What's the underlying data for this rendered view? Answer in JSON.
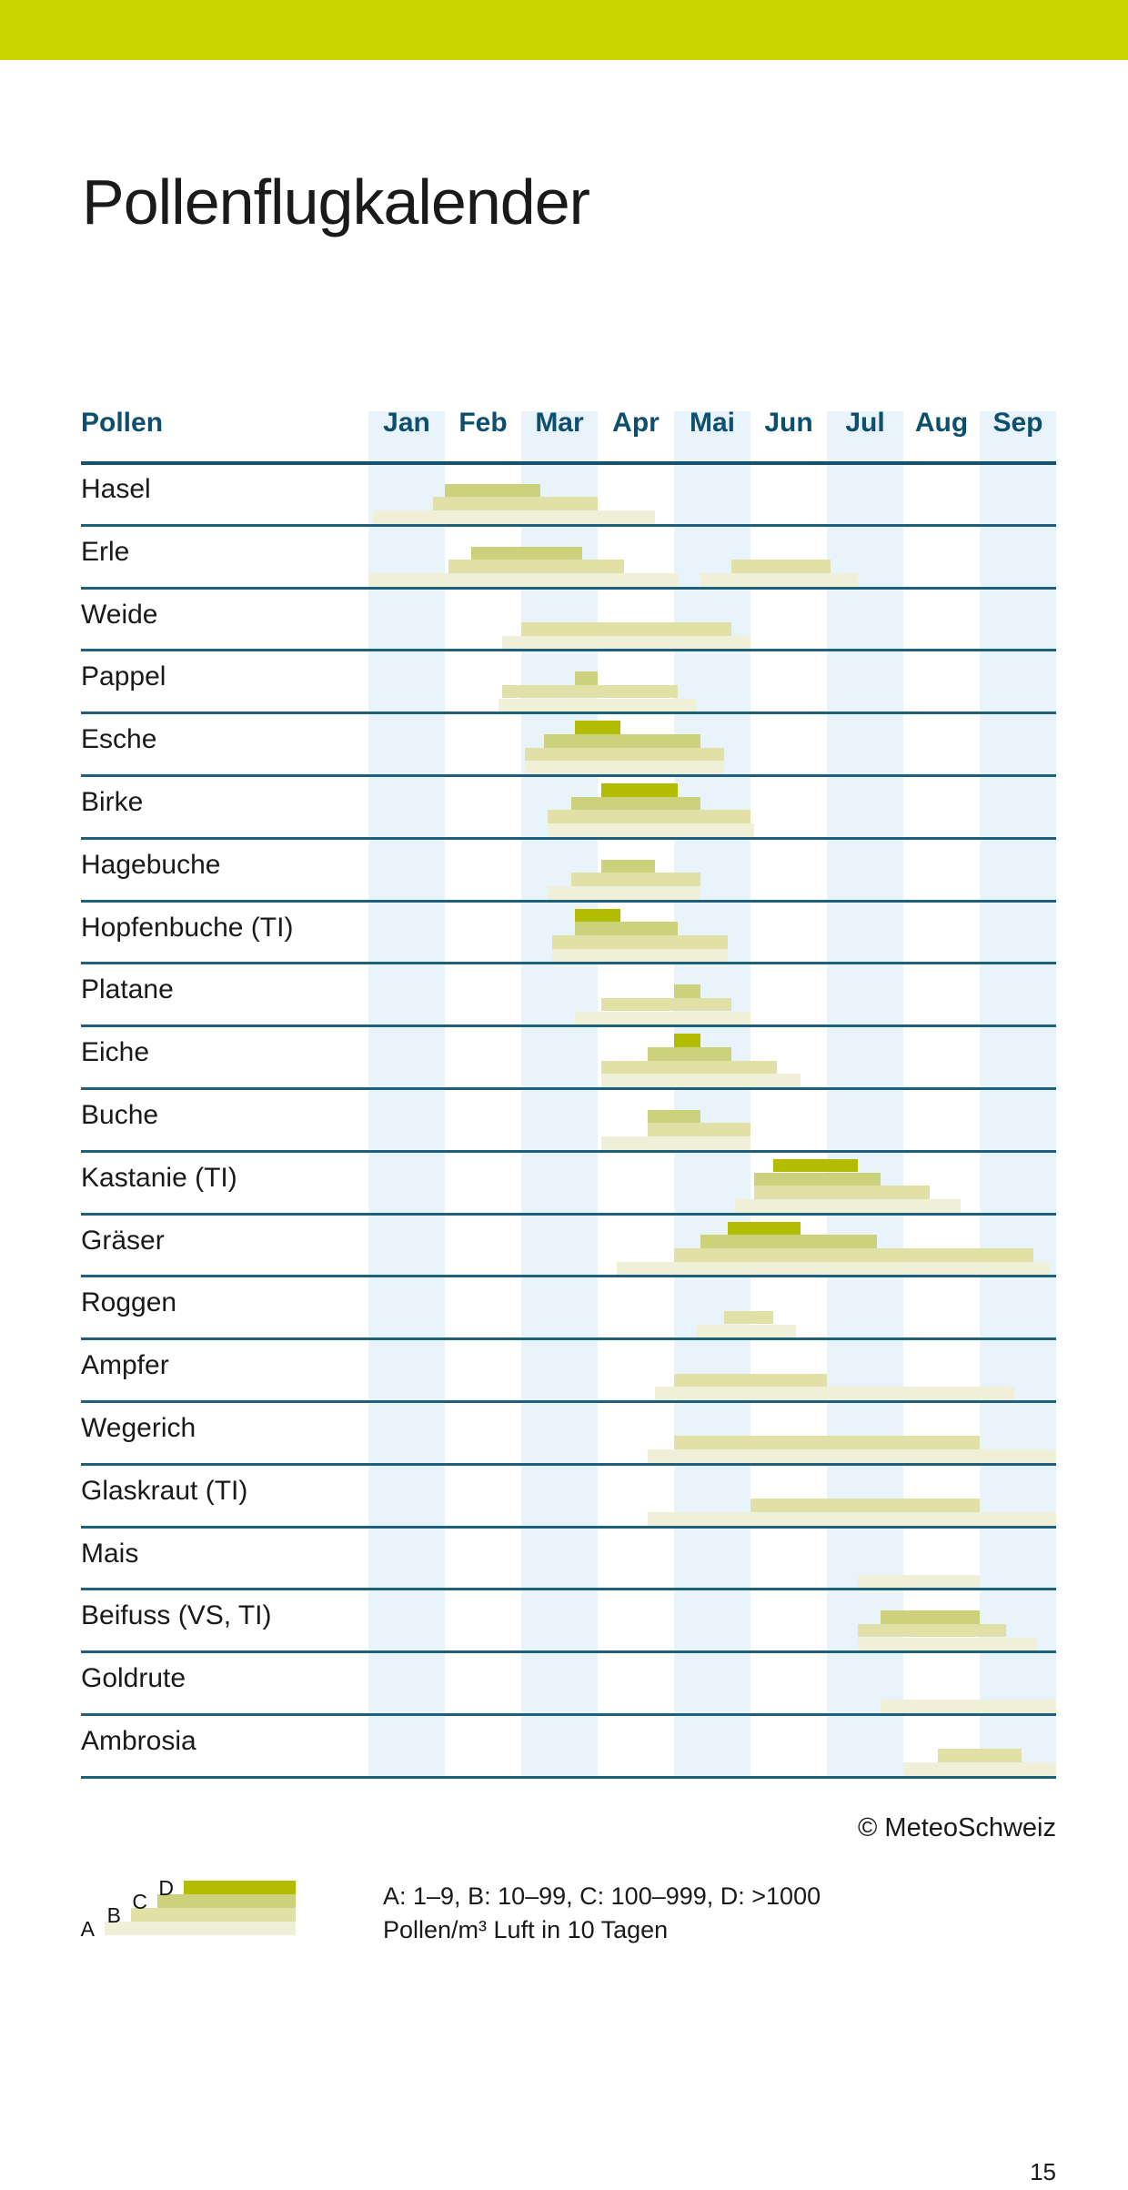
{
  "title": "Pollenflugkalender",
  "copyright": "© MeteoSchweiz",
  "page_number": "15",
  "colors": {
    "accent": "#cbd400",
    "stripe": "#e8f3fb",
    "divider": "#1e5f7c",
    "header_divider": "#14536f",
    "header_text": "#0d4f6e",
    "label_text": "#1a1a1a",
    "level_A": "#f0f0d8",
    "level_B": "#e1e1a7",
    "level_C": "#ccd17b",
    "level_D": "#b2bc00"
  },
  "chart_data": {
    "type": "timeline-bars",
    "title": "Pollenflugkalender",
    "column_header": "Pollen",
    "months": [
      "Jan",
      "Feb",
      "Mar",
      "Apr",
      "Mai",
      "Jun",
      "Jul",
      "Aug",
      "Sep"
    ],
    "striped_months": [
      "Jan",
      "Mar",
      "Mai",
      "Jul",
      "Sep"
    ],
    "axis": {
      "min": 0,
      "max": 9,
      "unit": "month",
      "note": "start/end given in months from Jan 1"
    },
    "levels": [
      "A",
      "B",
      "C",
      "D"
    ],
    "rows": [
      {
        "label": "Hasel",
        "bars": [
          {
            "level": "C",
            "start": 1.0,
            "end": 2.25
          },
          {
            "level": "B",
            "start": 0.85,
            "end": 3.0
          },
          {
            "level": "A",
            "start": 0.05,
            "end": 3.75
          }
        ]
      },
      {
        "label": "Erle",
        "bars": [
          {
            "level": "C",
            "start": 1.35,
            "end": 2.8
          },
          {
            "level": "B",
            "start": 1.05,
            "end": 3.35
          },
          {
            "level": "A",
            "start": 0.0,
            "end": 4.05
          },
          {
            "level": "B",
            "start": 4.75,
            "end": 6.05
          },
          {
            "level": "A",
            "start": 4.35,
            "end": 6.4
          }
        ]
      },
      {
        "label": "Weide",
        "bars": [
          {
            "level": "B",
            "start": 2.0,
            "end": 4.75
          },
          {
            "level": "A",
            "start": 1.75,
            "end": 5.0
          }
        ]
      },
      {
        "label": "Pappel",
        "bars": [
          {
            "level": "C",
            "start": 2.7,
            "end": 3.0
          },
          {
            "level": "B",
            "start": 1.75,
            "end": 4.05
          },
          {
            "level": "A",
            "start": 1.7,
            "end": 4.3
          }
        ]
      },
      {
        "label": "Esche",
        "bars": [
          {
            "level": "D",
            "start": 2.7,
            "end": 3.3
          },
          {
            "level": "C",
            "start": 2.3,
            "end": 4.35
          },
          {
            "level": "B",
            "start": 2.05,
            "end": 4.65
          },
          {
            "level": "A",
            "start": 2.05,
            "end": 4.65
          }
        ]
      },
      {
        "label": "Birke",
        "bars": [
          {
            "level": "D",
            "start": 3.05,
            "end": 4.05
          },
          {
            "level": "C",
            "start": 2.65,
            "end": 4.35
          },
          {
            "level": "B",
            "start": 2.35,
            "end": 5.0
          },
          {
            "level": "A",
            "start": 2.35,
            "end": 5.05
          }
        ]
      },
      {
        "label": "Hagebuche",
        "bars": [
          {
            "level": "C",
            "start": 3.05,
            "end": 3.75
          },
          {
            "level": "B",
            "start": 2.65,
            "end": 4.35
          },
          {
            "level": "A",
            "start": 2.35,
            "end": 4.35
          }
        ]
      },
      {
        "label": "Hopfenbuche (TI)",
        "bars": [
          {
            "level": "D",
            "start": 2.7,
            "end": 3.3
          },
          {
            "level": "C",
            "start": 2.7,
            "end": 4.05
          },
          {
            "level": "B",
            "start": 2.4,
            "end": 4.7
          },
          {
            "level": "A",
            "start": 2.4,
            "end": 4.7
          }
        ]
      },
      {
        "label": "Platane",
        "bars": [
          {
            "level": "C",
            "start": 4.0,
            "end": 4.35
          },
          {
            "level": "B",
            "start": 3.05,
            "end": 4.75
          },
          {
            "level": "A",
            "start": 2.7,
            "end": 5.0
          }
        ]
      },
      {
        "label": "Eiche",
        "bars": [
          {
            "level": "D",
            "start": 4.0,
            "end": 4.35
          },
          {
            "level": "C",
            "start": 3.65,
            "end": 4.75
          },
          {
            "level": "B",
            "start": 3.05,
            "end": 5.35
          },
          {
            "level": "A",
            "start": 3.05,
            "end": 5.65
          }
        ]
      },
      {
        "label": "Buche",
        "bars": [
          {
            "level": "C",
            "start": 3.65,
            "end": 4.35
          },
          {
            "level": "B",
            "start": 3.65,
            "end": 5.0
          },
          {
            "level": "A",
            "start": 3.05,
            "end": 5.0
          }
        ]
      },
      {
        "label": "Kastanie (TI)",
        "bars": [
          {
            "level": "D",
            "start": 5.3,
            "end": 6.4
          },
          {
            "level": "C",
            "start": 5.05,
            "end": 6.7
          },
          {
            "level": "B",
            "start": 5.05,
            "end": 7.35
          },
          {
            "level": "A",
            "start": 4.8,
            "end": 7.75
          }
        ]
      },
      {
        "label": "Gräser",
        "bars": [
          {
            "level": "D",
            "start": 4.7,
            "end": 5.65
          },
          {
            "level": "C",
            "start": 4.35,
            "end": 6.65
          },
          {
            "level": "B",
            "start": 4.0,
            "end": 8.7
          },
          {
            "level": "A",
            "start": 3.25,
            "end": 8.9
          }
        ]
      },
      {
        "label": "Roggen",
        "bars": [
          {
            "level": "B",
            "start": 4.65,
            "end": 5.3
          },
          {
            "level": "A",
            "start": 4.3,
            "end": 5.6
          }
        ]
      },
      {
        "label": "Ampfer",
        "bars": [
          {
            "level": "B",
            "start": 4.0,
            "end": 6.0
          },
          {
            "level": "A",
            "start": 3.75,
            "end": 8.45
          }
        ]
      },
      {
        "label": "Wegerich",
        "bars": [
          {
            "level": "B",
            "start": 4.0,
            "end": 8.0
          },
          {
            "level": "A",
            "start": 3.65,
            "end": 9.0
          }
        ]
      },
      {
        "label": "Glaskraut (TI)",
        "bars": [
          {
            "level": "B",
            "start": 5.0,
            "end": 8.0
          },
          {
            "level": "A",
            "start": 3.65,
            "end": 9.0
          }
        ]
      },
      {
        "label": "Mais",
        "bars": [
          {
            "level": "A",
            "start": 6.4,
            "end": 8.0
          }
        ]
      },
      {
        "label": "Beifuss (VS, TI)",
        "bars": [
          {
            "level": "C",
            "start": 6.7,
            "end": 8.0
          },
          {
            "level": "B",
            "start": 6.4,
            "end": 8.35
          },
          {
            "level": "A",
            "start": 6.4,
            "end": 8.75
          }
        ]
      },
      {
        "label": "Goldrute",
        "bars": [
          {
            "level": "A",
            "start": 6.7,
            "end": 9.0
          }
        ]
      },
      {
        "label": "Ambrosia",
        "bars": [
          {
            "level": "B",
            "start": 7.45,
            "end": 8.55
          },
          {
            "level": "A",
            "start": 7.0,
            "end": 9.0
          }
        ]
      }
    ]
  },
  "legend": {
    "labels": [
      "A",
      "B",
      "C",
      "D"
    ],
    "line1": "A: 1–9, B: 10–99, C: 100–999, D: >1000",
    "line2": "Pollen/m³ Luft in 10 Tagen"
  }
}
